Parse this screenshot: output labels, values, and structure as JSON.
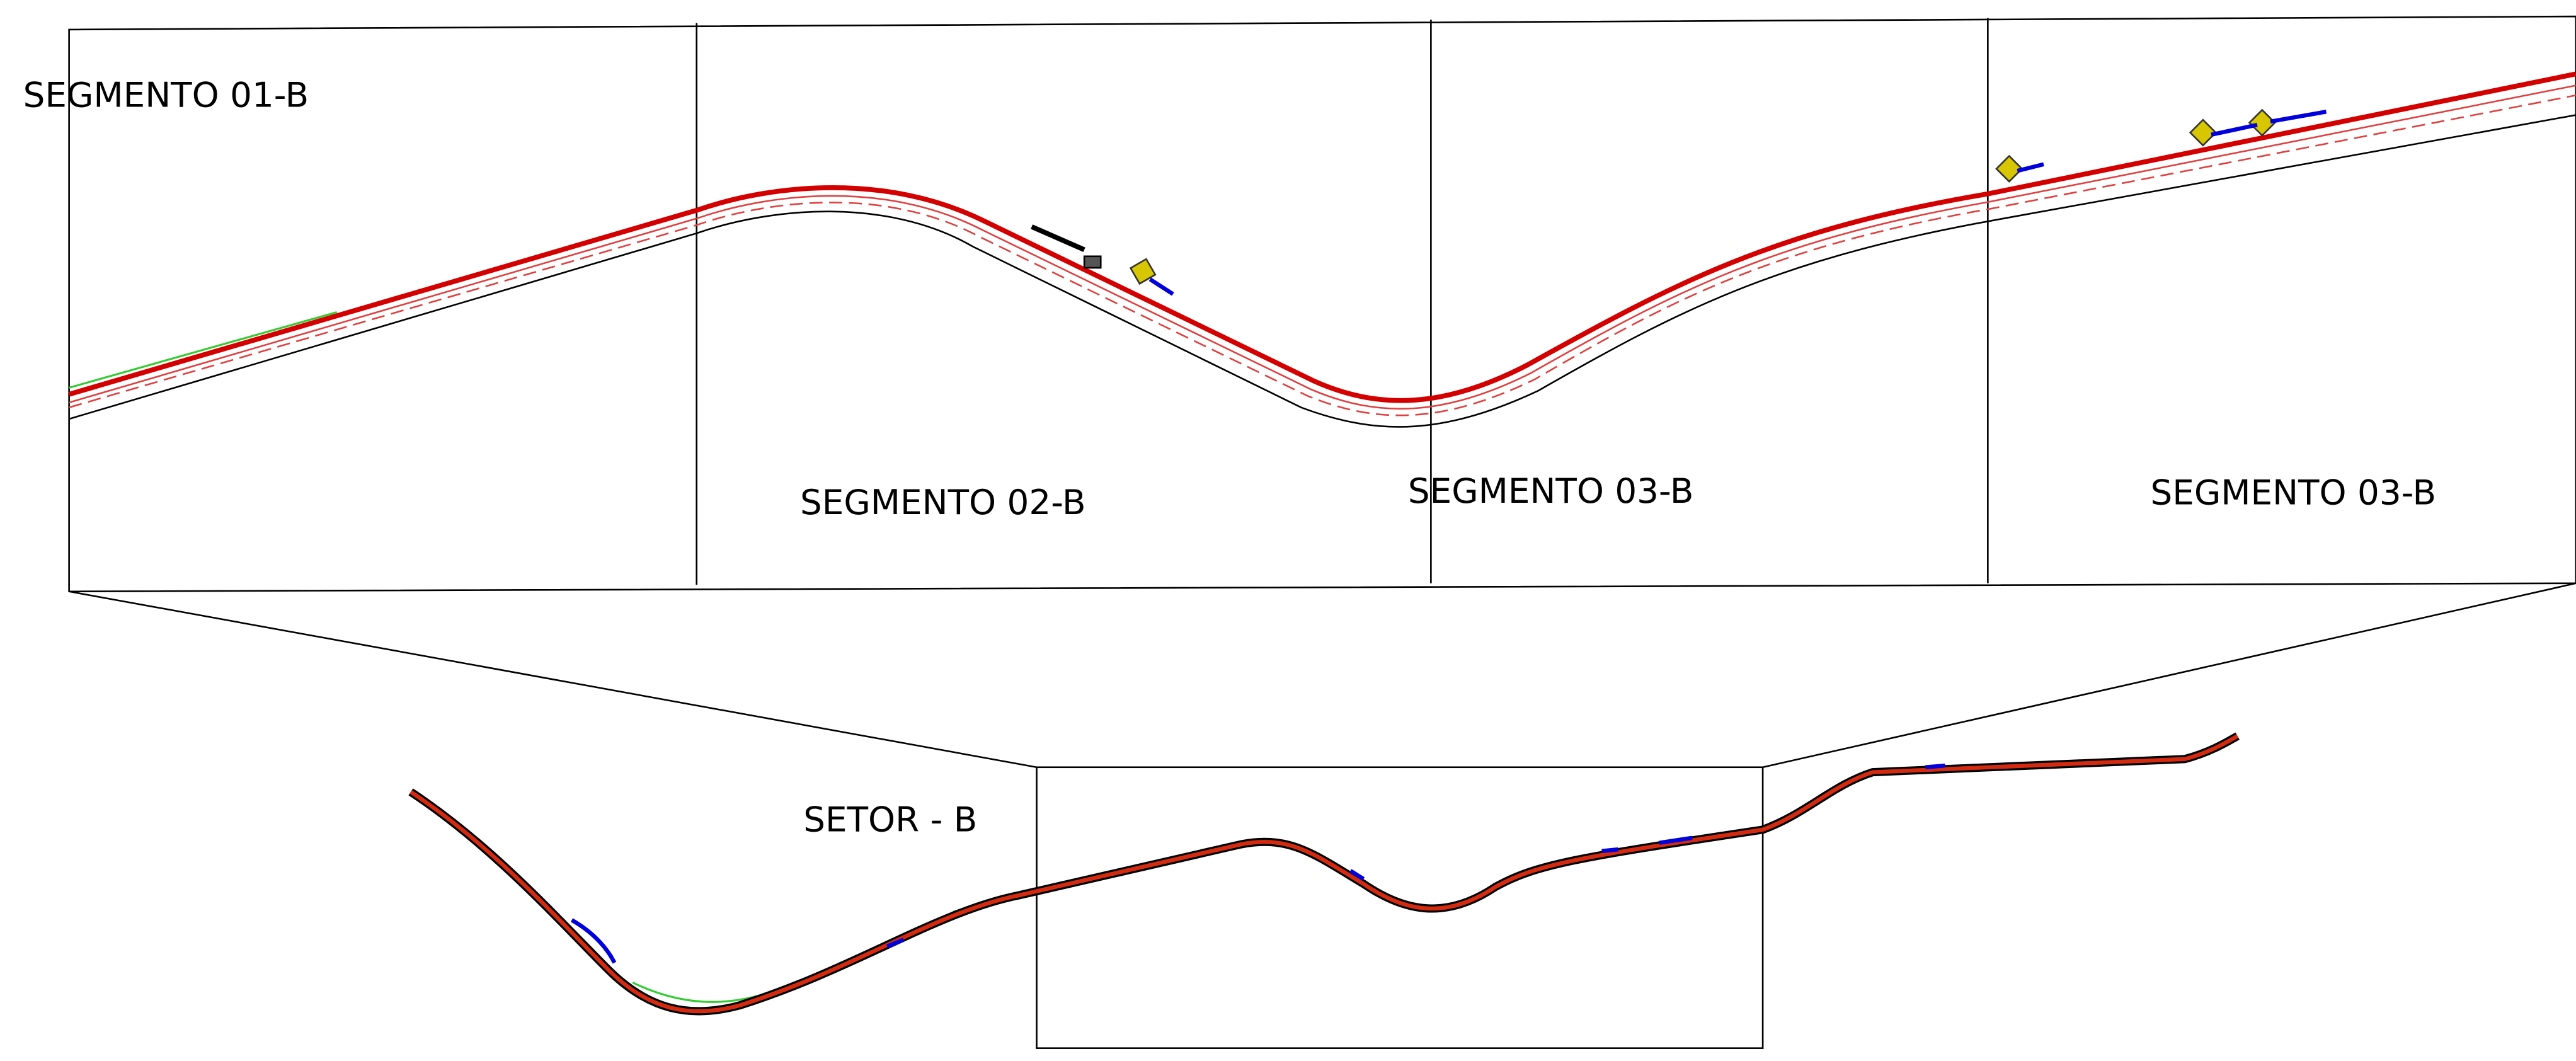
{
  "segments": [
    "SEGMENTO 01-B",
    "SEGMENTO 02-B",
    "SEGMENTO 03-B",
    "SEGMENTO 03-B"
  ],
  "sector_label": "SETOR - B"
}
